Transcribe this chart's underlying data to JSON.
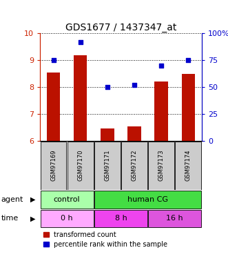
{
  "title": "GDS1677 / 1437347_at",
  "samples": [
    "GSM97169",
    "GSM97170",
    "GSM97171",
    "GSM97172",
    "GSM97173",
    "GSM97174"
  ],
  "red_values": [
    8.55,
    9.2,
    6.45,
    6.55,
    8.2,
    8.5
  ],
  "blue_values": [
    75,
    92,
    50,
    52,
    70,
    75
  ],
  "ylim_left": [
    6,
    10
  ],
  "ylim_right": [
    0,
    100
  ],
  "yticks_left": [
    6,
    7,
    8,
    9,
    10
  ],
  "yticks_right": [
    0,
    25,
    50,
    75,
    100
  ],
  "ytick_labels_left": [
    "6",
    "7",
    "8",
    "9",
    "10"
  ],
  "ytick_labels_right": [
    "0",
    "25",
    "50",
    "75",
    "100%"
  ],
  "bar_color": "#bb1100",
  "dot_color": "#0000cc",
  "bar_width": 0.5,
  "agent_groups": [
    {
      "label": "control",
      "span": [
        0,
        2
      ],
      "color": "#aaffaa"
    },
    {
      "label": "human CG",
      "span": [
        2,
        6
      ],
      "color": "#44dd44"
    }
  ],
  "time_groups": [
    {
      "label": "0 h",
      "span": [
        0,
        2
      ],
      "color": "#ffaaff"
    },
    {
      "label": "8 h",
      "span": [
        2,
        4
      ],
      "color": "#ee44ee"
    },
    {
      "label": "16 h",
      "span": [
        4,
        6
      ],
      "color": "#dd55dd"
    }
  ],
  "legend_red": "transformed count",
  "legend_blue": "percentile rank within the sample",
  "left_axis_color": "#cc2200",
  "right_axis_color": "#0000cc",
  "sample_box_color": "#cccccc"
}
